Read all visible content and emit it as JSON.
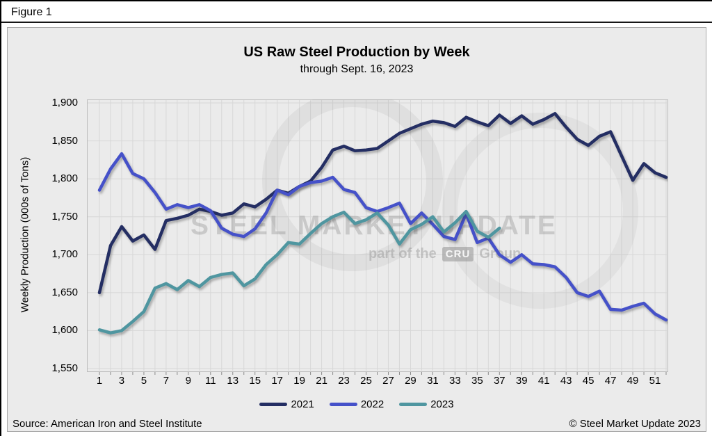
{
  "figure_label": "Figure 1",
  "chart_data": {
    "type": "line",
    "title": "US Raw Steel Production by Week",
    "subtitle": "through Sept. 16, 2023",
    "ylabel": "Weekly Production (000s of Tons)",
    "xlabel": "",
    "ylim": [
      1550,
      1900
    ],
    "ytick_step": 50,
    "ytick_labels_top_down": [
      "1,900",
      "1,850",
      "1,800",
      "1,750",
      "1,700",
      "1,650",
      "1,600",
      "1,550"
    ],
    "xticks": [
      1,
      3,
      5,
      7,
      9,
      11,
      13,
      15,
      17,
      19,
      21,
      23,
      25,
      27,
      29,
      31,
      33,
      35,
      37,
      39,
      41,
      43,
      45,
      47,
      49,
      51
    ],
    "weeks": 52,
    "grid": true,
    "legend_position": "bottom",
    "x": "week of year",
    "series": [
      {
        "name": "2021",
        "color": "#242e63",
        "values": [
          1650,
          1712,
          1737,
          1718,
          1726,
          1707,
          1745,
          1748,
          1752,
          1760,
          1757,
          1752,
          1755,
          1767,
          1763,
          1773,
          1785,
          1781,
          1790,
          1797,
          1815,
          1838,
          1843,
          1837,
          1838,
          1840,
          1850,
          1860,
          1866,
          1872,
          1876,
          1874,
          1869,
          1881,
          1875,
          1870,
          1884,
          1873,
          1883,
          1872,
          1878,
          1886,
          1868,
          1852,
          1844,
          1856,
          1862,
          1830,
          1798,
          1820,
          1808,
          1802
        ]
      },
      {
        "name": "2022",
        "color": "#4551c9",
        "values": [
          1785,
          1813,
          1833,
          1807,
          1800,
          1782,
          1760,
          1766,
          1762,
          1766,
          1758,
          1735,
          1727,
          1724,
          1734,
          1755,
          1785,
          1779,
          1790,
          1795,
          1797,
          1802,
          1786,
          1782,
          1762,
          1757,
          1762,
          1768,
          1741,
          1755,
          1740,
          1724,
          1720,
          1754,
          1716,
          1722,
          1700,
          1690,
          1700,
          1688,
          1687,
          1684,
          1670,
          1650,
          1645,
          1652,
          1628,
          1627,
          1632,
          1636,
          1622,
          1614
        ]
      },
      {
        "name": "2023",
        "color": "#4f96a0",
        "values": [
          1601,
          1597,
          1600,
          1612,
          1625,
          1656,
          1662,
          1654,
          1666,
          1658,
          1670,
          1674,
          1676,
          1659,
          1668,
          1687,
          1700,
          1716,
          1714,
          1728,
          1741,
          1750,
          1756,
          1741,
          1746,
          1755,
          1739,
          1714,
          1733,
          1740,
          1750,
          1730,
          1742,
          1757,
          1731,
          1723,
          1735
        ]
      }
    ]
  },
  "watermark": {
    "line1": "STEEL MARKET UPDATE",
    "line2_prefix": "part of the",
    "line2_logo": "CRU",
    "line2_suffix": "Group"
  },
  "footer": {
    "source": "Source: American Iron and Steel Institute",
    "copyright": "© Steel Market Update 2023"
  }
}
